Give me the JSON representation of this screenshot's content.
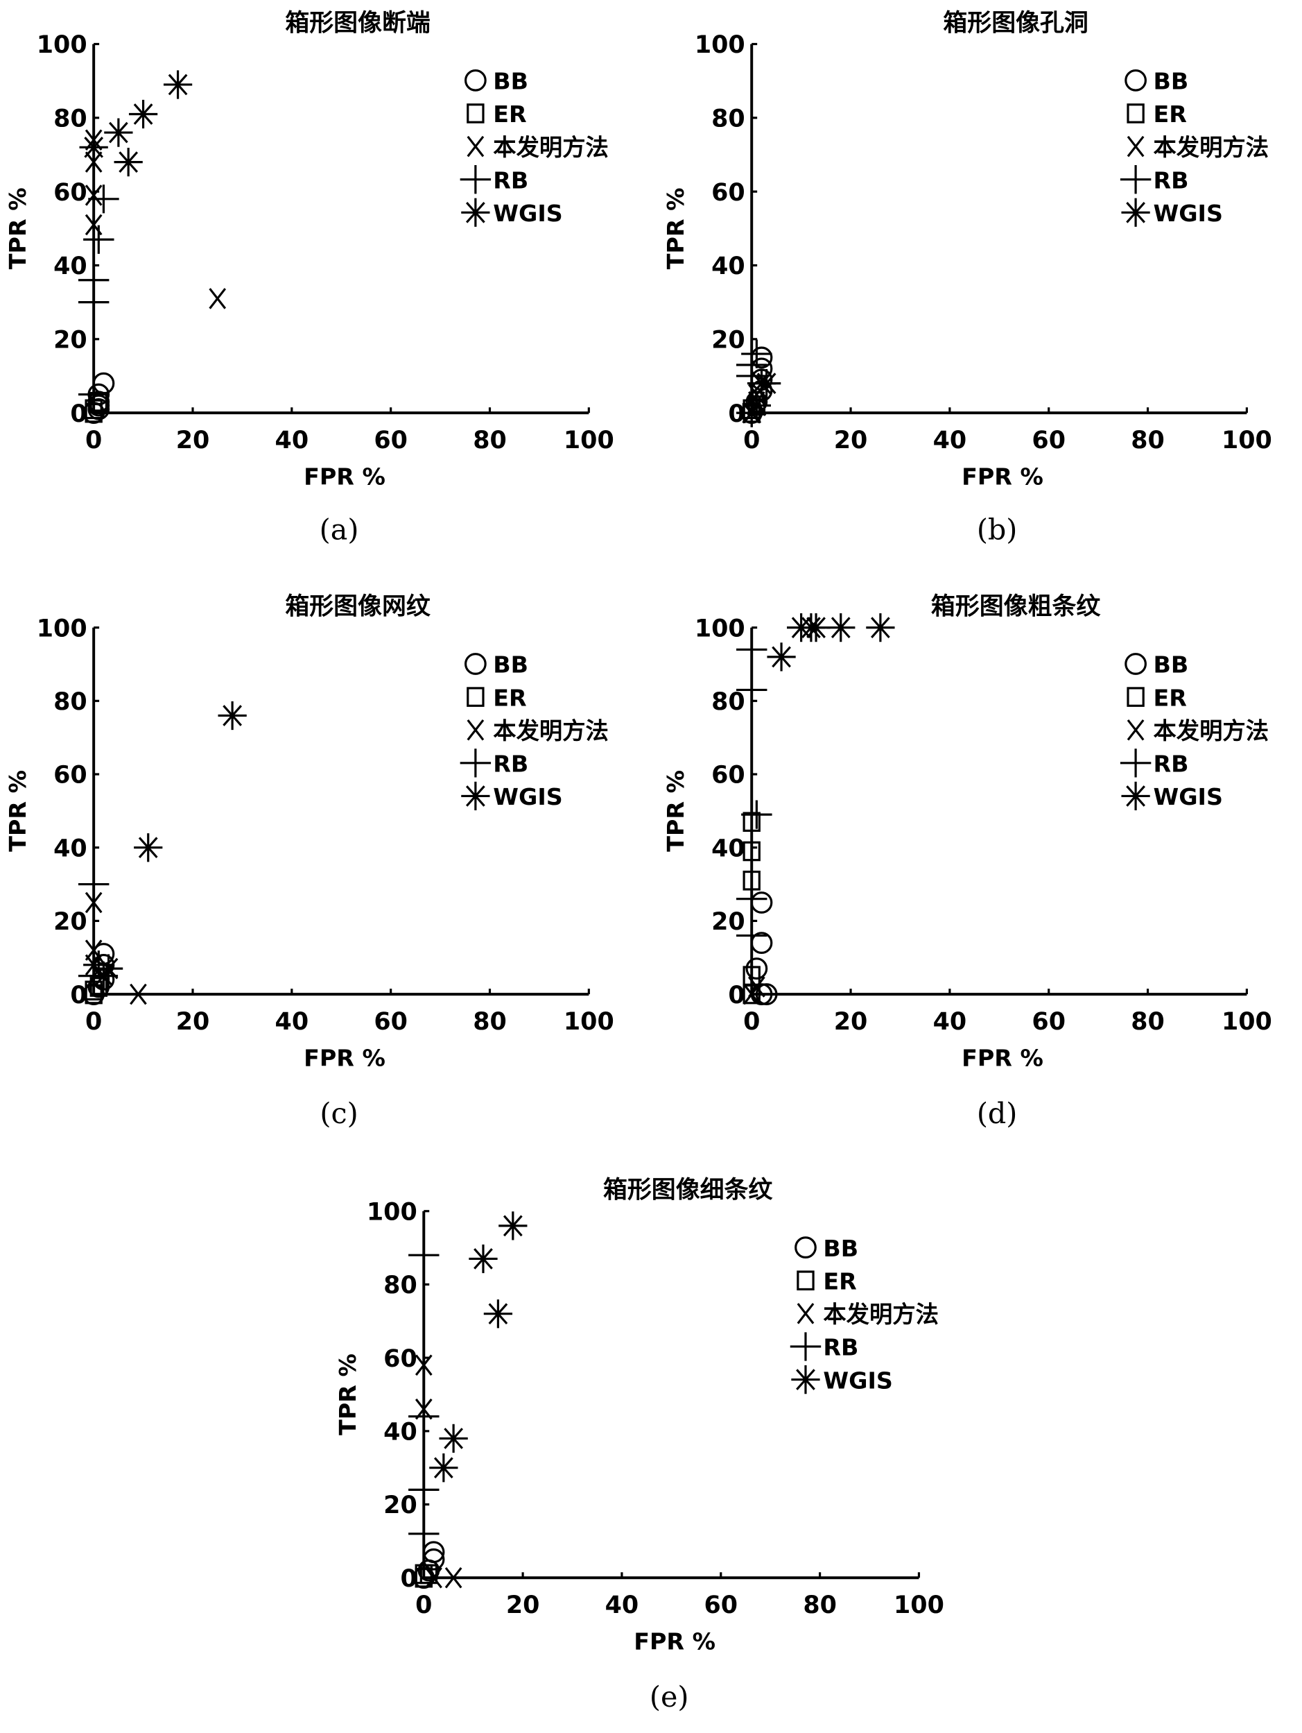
{
  "chart_data": [
    {
      "id": "a",
      "type": "scatter",
      "title": "箱形图像断端",
      "caption": "(a)",
      "xlabel": "FPR %",
      "ylabel": "TPR %",
      "xlim": [
        0,
        100
      ],
      "ylim": [
        0,
        100
      ],
      "xticks": [
        "0",
        "20",
        "40",
        "60",
        "80",
        "100"
      ],
      "yticks": [
        "0",
        "20",
        "40",
        "60",
        "80",
        "100"
      ],
      "legend_position": "top-right",
      "grid": false,
      "series": [
        {
          "name": "BB",
          "marker": "circle",
          "points": [
            [
              2,
              8
            ],
            [
              1,
              5
            ],
            [
              1,
              3
            ],
            [
              1,
              2
            ],
            [
              1,
              1
            ],
            [
              0,
              0
            ]
          ]
        },
        {
          "name": "ER",
          "marker": "square",
          "points": [
            [
              0,
              0
            ],
            [
              0,
              1
            ],
            [
              1,
              3
            ]
          ]
        },
        {
          "name": "本发明方法",
          "marker": "x",
          "points": [
            [
              0,
              74
            ],
            [
              0,
              68
            ],
            [
              0,
              59
            ],
            [
              0,
              51
            ],
            [
              25,
              31
            ]
          ]
        },
        {
          "name": "RB",
          "marker": "plus",
          "points": [
            [
              0,
              30
            ],
            [
              0,
              36
            ],
            [
              1,
              47
            ],
            [
              2,
              58
            ],
            [
              0,
              5
            ]
          ]
        },
        {
          "name": "WGIS",
          "marker": "star",
          "points": [
            [
              0,
              72
            ],
            [
              5,
              76
            ],
            [
              10,
              81
            ],
            [
              17,
              89
            ],
            [
              7,
              68
            ]
          ]
        }
      ]
    },
    {
      "id": "b",
      "type": "scatter",
      "title": "箱形图像孔洞",
      "caption": "(b)",
      "xlabel": "FPR %",
      "ylabel": "TPR %",
      "xlim": [
        0,
        100
      ],
      "ylim": [
        0,
        100
      ],
      "xticks": [
        "0",
        "20",
        "40",
        "60",
        "80",
        "100"
      ],
      "yticks": [
        "0",
        "20",
        "40",
        "60",
        "80",
        "100"
      ],
      "legend_position": "top-right",
      "grid": false,
      "series": [
        {
          "name": "BB",
          "marker": "circle",
          "points": [
            [
              2,
              15
            ],
            [
              2,
              12
            ],
            [
              2,
              9
            ],
            [
              2,
              6
            ],
            [
              1,
              3
            ],
            [
              0,
              0
            ]
          ]
        },
        {
          "name": "ER",
          "marker": "square",
          "points": [
            [
              0,
              0
            ],
            [
              0,
              1
            ],
            [
              1,
              2
            ]
          ]
        },
        {
          "name": "本发明方法",
          "marker": "x",
          "points": [
            [
              0,
              0
            ],
            [
              1,
              3
            ],
            [
              1,
              5
            ]
          ]
        },
        {
          "name": "RB",
          "marker": "plus",
          "points": [
            [
              0,
              10
            ],
            [
              0,
              13
            ],
            [
              1,
              16
            ],
            [
              0,
              0
            ]
          ]
        },
        {
          "name": "WGIS",
          "marker": "star",
          "points": [
            [
              1,
              2
            ],
            [
              2,
              8
            ],
            [
              3,
              8
            ],
            [
              0,
              0
            ]
          ]
        }
      ]
    },
    {
      "id": "c",
      "type": "scatter",
      "title": "箱形图像网纹",
      "caption": "(c)",
      "xlabel": "FPR %",
      "ylabel": "TPR %",
      "xlim": [
        0,
        100
      ],
      "ylim": [
        0,
        100
      ],
      "xticks": [
        "0",
        "20",
        "40",
        "60",
        "80",
        "100"
      ],
      "yticks": [
        "0",
        "20",
        "40",
        "60",
        "80",
        "100"
      ],
      "legend_position": "top-right",
      "grid": false,
      "series": [
        {
          "name": "BB",
          "marker": "circle",
          "points": [
            [
              2,
              11
            ],
            [
              2,
              8
            ],
            [
              2,
              4
            ],
            [
              1,
              2
            ],
            [
              0,
              0
            ]
          ]
        },
        {
          "name": "ER",
          "marker": "square",
          "points": [
            [
              0,
              0
            ],
            [
              0,
              1
            ],
            [
              1,
              2
            ]
          ]
        },
        {
          "name": "本发明方法",
          "marker": "x",
          "points": [
            [
              0,
              25
            ],
            [
              0,
              12
            ],
            [
              0,
              8
            ],
            [
              9,
              0
            ]
          ]
        },
        {
          "name": "RB",
          "marker": "plus",
          "points": [
            [
              0,
              30
            ],
            [
              0,
              5
            ],
            [
              1,
              8
            ]
          ]
        },
        {
          "name": "WGIS",
          "marker": "star",
          "points": [
            [
              28,
              76
            ],
            [
              11,
              40
            ],
            [
              3,
              7
            ],
            [
              2,
              5
            ]
          ]
        }
      ]
    },
    {
      "id": "d",
      "type": "scatter",
      "title": "箱形图像粗条纹",
      "caption": "(d)",
      "xlabel": "FPR %",
      "ylabel": "TPR %",
      "xlim": [
        0,
        100
      ],
      "ylim": [
        0,
        100
      ],
      "xticks": [
        "0",
        "20",
        "40",
        "60",
        "80",
        "100"
      ],
      "yticks": [
        "0",
        "20",
        "40",
        "60",
        "80",
        "100"
      ],
      "legend_position": "top-right",
      "grid": false,
      "series": [
        {
          "name": "BB",
          "marker": "circle",
          "points": [
            [
              2,
              25
            ],
            [
              2,
              14
            ],
            [
              1,
              7
            ],
            [
              2,
              0
            ],
            [
              3,
              0
            ]
          ]
        },
        {
          "name": "ER",
          "marker": "square",
          "points": [
            [
              0,
              47
            ],
            [
              0,
              39
            ],
            [
              0,
              31
            ],
            [
              0,
              5
            ],
            [
              0,
              0
            ]
          ]
        },
        {
          "name": "本发明方法",
          "marker": "x",
          "points": [
            [
              0,
              0
            ],
            [
              1,
              2
            ]
          ]
        },
        {
          "name": "RB",
          "marker": "plus",
          "points": [
            [
              0,
              94
            ],
            [
              0,
              83
            ],
            [
              1,
              49
            ],
            [
              0,
              26
            ],
            [
              0,
              16
            ]
          ]
        },
        {
          "name": "WGIS",
          "marker": "star",
          "points": [
            [
              6,
              92
            ],
            [
              10,
              100
            ],
            [
              12,
              100
            ],
            [
              13,
              100
            ],
            [
              18,
              100
            ],
            [
              26,
              100
            ]
          ]
        }
      ]
    },
    {
      "id": "e",
      "type": "scatter",
      "title": "箱形图像细条纹",
      "caption": "(e)",
      "xlabel": "FPR %",
      "ylabel": "TPR %",
      "xlim": [
        0,
        100
      ],
      "ylim": [
        0,
        100
      ],
      "xticks": [
        "0",
        "20",
        "40",
        "60",
        "80",
        "100"
      ],
      "yticks": [
        "0",
        "20",
        "40",
        "60",
        "80",
        "100"
      ],
      "legend_position": "top-right",
      "grid": false,
      "series": [
        {
          "name": "BB",
          "marker": "circle",
          "points": [
            [
              2,
              7
            ],
            [
              2,
              5
            ],
            [
              1,
              2
            ],
            [
              0,
              0
            ]
          ]
        },
        {
          "name": "ER",
          "marker": "square",
          "points": [
            [
              0,
              0
            ],
            [
              0,
              1
            ],
            [
              1,
              1
            ]
          ]
        },
        {
          "name": "本发明方法",
          "marker": "x",
          "points": [
            [
              0,
              58
            ],
            [
              0,
              46
            ],
            [
              2,
              0
            ],
            [
              6,
              0
            ]
          ]
        },
        {
          "name": "RB",
          "marker": "plus",
          "points": [
            [
              0,
              88
            ],
            [
              0,
              44
            ],
            [
              0,
              24
            ],
            [
              0,
              12
            ]
          ]
        },
        {
          "name": "WGIS",
          "marker": "star",
          "points": [
            [
              18,
              96
            ],
            [
              12,
              87
            ],
            [
              15,
              72
            ],
            [
              6,
              38
            ],
            [
              4,
              30
            ]
          ]
        }
      ]
    }
  ]
}
